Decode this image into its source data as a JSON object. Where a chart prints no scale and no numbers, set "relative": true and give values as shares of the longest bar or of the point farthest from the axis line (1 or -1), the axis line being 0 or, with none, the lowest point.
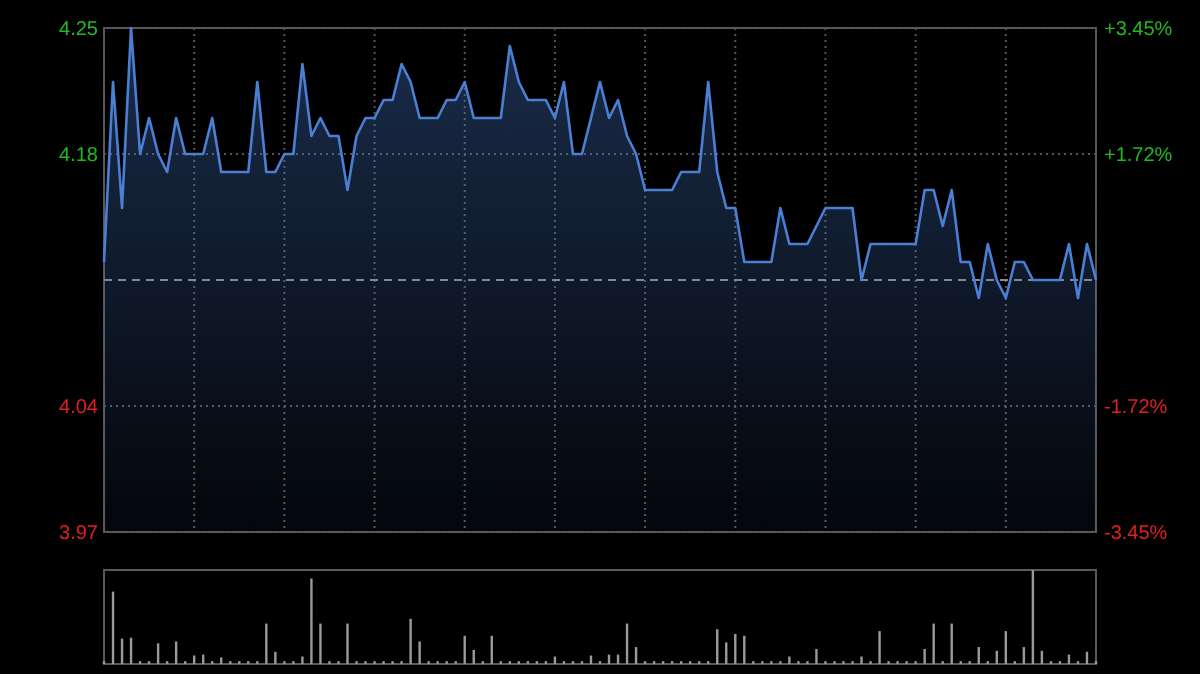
{
  "chart_data": [
    {
      "type": "area",
      "categories": [
        null,
        null,
        null,
        null,
        null,
        null,
        null,
        null,
        null,
        null,
        null,
        null,
        null,
        null,
        null,
        null,
        null,
        null,
        null,
        null,
        null,
        null,
        null,
        null,
        null,
        null,
        null,
        null,
        null,
        null,
        null,
        null,
        null,
        null,
        null,
        null,
        null,
        null,
        null,
        null,
        null,
        null,
        null,
        null,
        null,
        null,
        null,
        null,
        null,
        null,
        null,
        null,
        null,
        null,
        null,
        null,
        null,
        null,
        null,
        null,
        null,
        null,
        null,
        null,
        null,
        null,
        null,
        null,
        null,
        null,
        null,
        null,
        null,
        null,
        null,
        null,
        null,
        null,
        null,
        null,
        null,
        null,
        null,
        null,
        null,
        null,
        null,
        null,
        null,
        null,
        null,
        null,
        null,
        null,
        null,
        null,
        null,
        null,
        null,
        null,
        null,
        null,
        null,
        null,
        null,
        null,
        null,
        null,
        null,
        null,
        null
      ],
      "ylim": [
        3.97,
        4.25
      ],
      "yticks": [
        3.97,
        4.04,
        4.18,
        4.25
      ],
      "y2lim": [
        -3.45,
        3.45
      ],
      "y2ticks": [
        {
          "value": -3.45,
          "label": "-3.45%"
        },
        {
          "value": -1.72,
          "label": "-1.72%"
        },
        {
          "value": 1.72,
          "label": "+1.72%"
        },
        {
          "value": 3.45,
          "label": "+3.45%"
        }
      ],
      "grid": true,
      "ref_lines": [
        {
          "axis": "y",
          "value": 4.11,
          "line_style": "dashed",
          "color": "#8a8a8a"
        }
      ],
      "series": [
        {
          "color": "#4a7fd4",
          "values": [
            4.12,
            4.22,
            4.15,
            4.25,
            4.18,
            4.2,
            4.18,
            4.17,
            4.2,
            4.18,
            4.18,
            4.18,
            4.2,
            4.17,
            4.17,
            4.17,
            4.17,
            4.22,
            4.17,
            4.17,
            4.18,
            4.18,
            4.23,
            4.19,
            4.2,
            4.19,
            4.19,
            4.16,
            4.19,
            4.2,
            4.2,
            4.21,
            4.21,
            4.23,
            4.22,
            4.2,
            4.2,
            4.2,
            4.21,
            4.21,
            4.22,
            4.2,
            4.2,
            4.2,
            4.2,
            4.24,
            4.22,
            4.21,
            4.21,
            4.21,
            4.2,
            4.22,
            4.18,
            4.18,
            4.2,
            4.22,
            4.2,
            4.21,
            4.19,
            4.18,
            4.16,
            4.16,
            4.16,
            4.16,
            4.17,
            4.17,
            4.17,
            4.22,
            4.17,
            4.15,
            4.15,
            4.12,
            4.12,
            4.12,
            4.12,
            4.15,
            4.13,
            4.13,
            4.13,
            4.14,
            4.15,
            4.15,
            4.15,
            4.15,
            4.11,
            4.13,
            4.13,
            4.13,
            4.13,
            4.13,
            4.13,
            4.16,
            4.16,
            4.14,
            4.16,
            4.12,
            4.12,
            4.1,
            4.13,
            4.11,
            4.1,
            4.12,
            4.12,
            4.11,
            4.11,
            4.11,
            4.11,
            4.13,
            4.1,
            4.13,
            4.11
          ]
        }
      ]
    },
    {
      "type": "bar",
      "relative": true,
      "categories": [
        null,
        null,
        null,
        null,
        null,
        null,
        null,
        null,
        null,
        null,
        null,
        null,
        null,
        null,
        null,
        null,
        null,
        null,
        null,
        null,
        null,
        null,
        null,
        null,
        null,
        null,
        null,
        null,
        null,
        null,
        null,
        null,
        null,
        null,
        null,
        null,
        null,
        null,
        null,
        null,
        null,
        null,
        null,
        null,
        null,
        null,
        null,
        null,
        null,
        null,
        null,
        null,
        null,
        null,
        null,
        null,
        null,
        null,
        null,
        null,
        null,
        null,
        null,
        null,
        null,
        null,
        null,
        null,
        null,
        null,
        null,
        null,
        null,
        null,
        null,
        null,
        null,
        null,
        null,
        null,
        null,
        null,
        null,
        null,
        null,
        null,
        null,
        null,
        null,
        null,
        null,
        null,
        null,
        null,
        null,
        null,
        null,
        null,
        null,
        null,
        null,
        null,
        null,
        null,
        null,
        null,
        null,
        null,
        null,
        null,
        null
      ],
      "series": [
        {
          "color": "#9a9a9a",
          "values": [
            0.03,
            0.77,
            0.27,
            0.28,
            0.03,
            0.03,
            0.22,
            0.03,
            0.24,
            0.03,
            0.09,
            0.1,
            0.03,
            0.07,
            0.03,
            0.03,
            0.03,
            0.03,
            0.43,
            0.13,
            0.03,
            0.03,
            0.08,
            0.91,
            0.43,
            0.03,
            0.03,
            0.43,
            0.03,
            0.03,
            0.03,
            0.03,
            0.03,
            0.03,
            0.48,
            0.24,
            0.03,
            0.03,
            0.03,
            0.03,
            0.3,
            0.15,
            0.03,
            0.3,
            0.03,
            0.03,
            0.03,
            0.03,
            0.03,
            0.03,
            0.08,
            0.03,
            0.03,
            0.03,
            0.09,
            0.03,
            0.1,
            0.1,
            0.43,
            0.18,
            0.03,
            0.03,
            0.03,
            0.03,
            0.03,
            0.03,
            0.03,
            0.03,
            0.37,
            0.23,
            0.32,
            0.3,
            0.03,
            0.03,
            0.03,
            0.03,
            0.08,
            0.03,
            0.03,
            0.16,
            0.03,
            0.03,
            0.03,
            0.03,
            0.08,
            0.03,
            0.35,
            0.03,
            0.03,
            0.03,
            0.03,
            0.16,
            0.43,
            0.03,
            0.43,
            0.03,
            0.03,
            0.18,
            0.03,
            0.14,
            0.35,
            0.03,
            0.18,
            1,
            0.14,
            0.03,
            0.03,
            0.1,
            0.03,
            0.13,
            0.03
          ]
        }
      ]
    }
  ]
}
